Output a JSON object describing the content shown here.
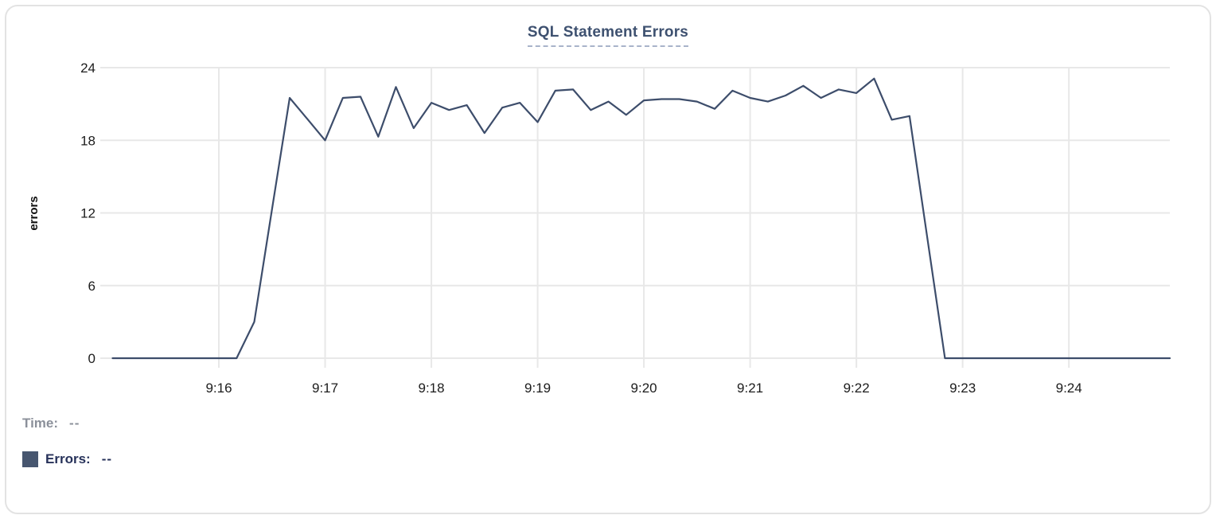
{
  "title": {
    "text": "SQL Statement Errors"
  },
  "tooltip": {
    "time_label": "Time:",
    "time_value": "--",
    "errors_label": "Errors:",
    "errors_value": "--"
  },
  "colors": {
    "line": "#3d4d6b",
    "grid": "#e8e8e8",
    "axis_text": "#1c1c1c",
    "title_text": "#3e5170",
    "title_underline": "#a9b4ca",
    "time_text": "#8b909a",
    "errors_text": "#27325a",
    "swatch": "#47566f",
    "card_border": "#e3e3e3"
  },
  "chart_data": {
    "type": "line",
    "title": "SQL Statement Errors",
    "xlabel": "",
    "ylabel": "errors",
    "ylim": [
      0,
      24
    ],
    "grid": true,
    "legend_position": "bottom-left",
    "x_range": [
      "9:15:00",
      "9:24:57"
    ],
    "x_tick_labels": [
      "9:16",
      "9:17",
      "9:18",
      "9:19",
      "9:20",
      "9:21",
      "9:22",
      "9:23",
      "9:24"
    ],
    "y_tick_values": [
      0,
      6,
      12,
      18,
      24
    ],
    "series": [
      {
        "name": "Errors",
        "color": "#3d4d6b",
        "points": [
          [
            "9:15:00",
            0
          ],
          [
            "9:15:10",
            0
          ],
          [
            "9:15:20",
            0
          ],
          [
            "9:15:30",
            0
          ],
          [
            "9:15:40",
            0
          ],
          [
            "9:15:50",
            0
          ],
          [
            "9:16:00",
            0
          ],
          [
            "9:16:10",
            0
          ],
          [
            "9:16:20",
            3
          ],
          [
            "9:16:30",
            12.3
          ],
          [
            "9:16:40",
            21.5
          ],
          [
            "9:16:50",
            19.75
          ],
          [
            "9:17:00",
            18
          ],
          [
            "9:17:10",
            21.5
          ],
          [
            "9:17:20",
            21.6
          ],
          [
            "9:17:30",
            18.3
          ],
          [
            "9:17:40",
            22.4
          ],
          [
            "9:17:50",
            19
          ],
          [
            "9:18:00",
            21.1
          ],
          [
            "9:18:10",
            20.5
          ],
          [
            "9:18:20",
            20.9
          ],
          [
            "9:18:30",
            18.6
          ],
          [
            "9:18:40",
            20.7
          ],
          [
            "9:18:50",
            21.1
          ],
          [
            "9:19:00",
            19.5
          ],
          [
            "9:19:10",
            22.1
          ],
          [
            "9:19:20",
            22.2
          ],
          [
            "9:19:30",
            20.5
          ],
          [
            "9:19:40",
            21.2
          ],
          [
            "9:19:50",
            20.1
          ],
          [
            "9:20:00",
            21.3
          ],
          [
            "9:20:10",
            21.4
          ],
          [
            "9:20:20",
            21.4
          ],
          [
            "9:20:30",
            21.2
          ],
          [
            "9:20:40",
            20.6
          ],
          [
            "9:20:50",
            22.1
          ],
          [
            "9:21:00",
            21.5
          ],
          [
            "9:21:10",
            21.2
          ],
          [
            "9:21:20",
            21.7
          ],
          [
            "9:21:30",
            22.5
          ],
          [
            "9:21:40",
            21.5
          ],
          [
            "9:21:50",
            22.2
          ],
          [
            "9:22:00",
            21.9
          ],
          [
            "9:22:10",
            23.1
          ],
          [
            "9:22:20",
            19.7
          ],
          [
            "9:22:30",
            20
          ],
          [
            "9:22:40",
            10
          ],
          [
            "9:22:50",
            0
          ],
          [
            "9:23:00",
            0
          ],
          [
            "9:23:10",
            0
          ],
          [
            "9:23:20",
            0
          ],
          [
            "9:23:30",
            0
          ],
          [
            "9:23:40",
            0
          ],
          [
            "9:23:50",
            0
          ],
          [
            "9:24:00",
            0
          ],
          [
            "9:24:10",
            0
          ],
          [
            "9:24:20",
            0
          ],
          [
            "9:24:30",
            0
          ],
          [
            "9:24:40",
            0
          ],
          [
            "9:24:50",
            0
          ],
          [
            "9:24:57",
            0
          ]
        ]
      }
    ]
  }
}
